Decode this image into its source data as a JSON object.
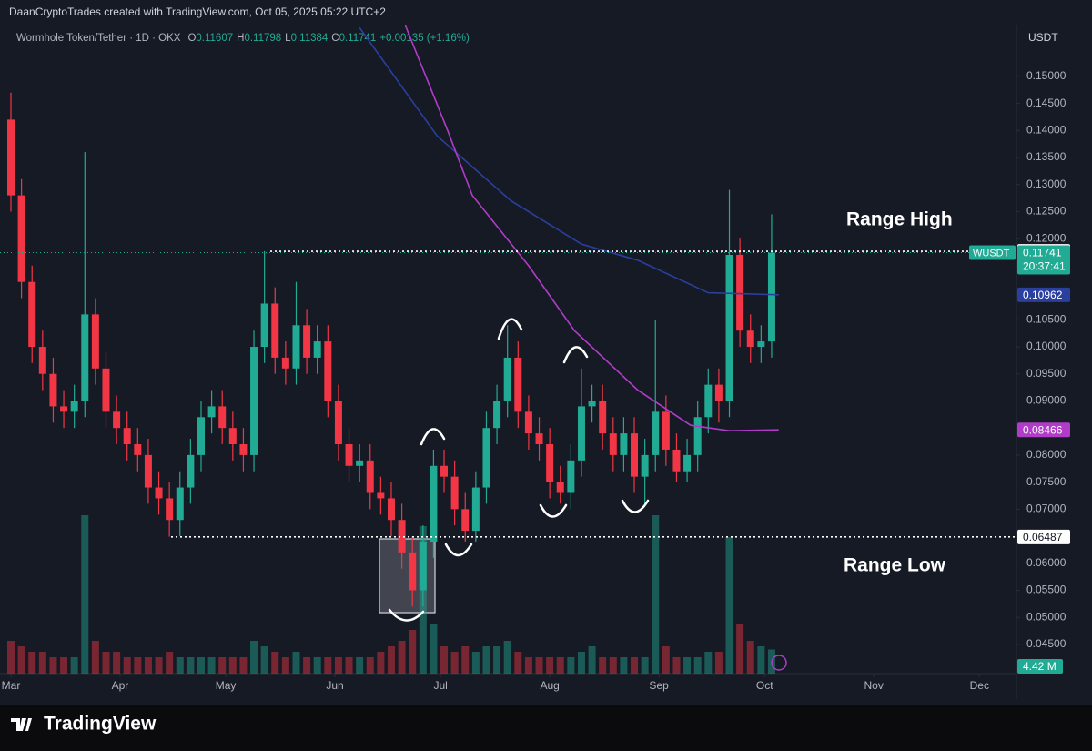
{
  "header": {
    "credit": "DaanCryptoTrades created with TradingView.com, Oct 05, 2025 05:22 UTC+2",
    "logo": "TradingView"
  },
  "chart_data": {
    "type": "candlestick",
    "symbol_line": "Wormhole Token/Tether · 1D · OKX",
    "ohlc": [
      {
        "label": "O",
        "value": 0.11607
      },
      {
        "label": "H",
        "value": 0.11798
      },
      {
        "label": "L",
        "value": 0.11384
      },
      {
        "label": "C",
        "value": 0.11741
      }
    ],
    "change": "+0.00135 (+1.16%)",
    "currency": "USDT",
    "ticker": "WUSDT",
    "countdown": "20:37:41",
    "volume_label": "4.42 M",
    "colors": {
      "up": "#22ab94",
      "down": "#f23645"
    },
    "x": [
      0,
      3,
      6,
      9,
      12,
      15,
      18,
      21,
      24,
      27,
      30,
      33,
      36,
      39,
      42,
      45,
      48,
      51,
      54,
      57,
      60,
      63,
      66,
      69,
      72,
      75,
      78,
      81,
      84,
      87,
      90,
      93,
      96,
      99,
      102,
      105,
      108,
      111,
      114,
      117,
      120,
      123,
      126,
      129,
      132,
      135,
      138,
      141,
      144,
      147,
      150,
      153,
      156,
      159,
      162,
      165,
      168,
      171,
      174,
      177,
      180,
      183,
      186,
      189,
      192,
      195,
      198,
      201,
      204,
      207,
      210,
      213,
      216
    ],
    "open": [
      0.142,
      0.128,
      0.112,
      0.1,
      0.095,
      0.089,
      0.088,
      0.09,
      0.106,
      0.096,
      0.088,
      0.085,
      0.082,
      0.08,
      0.074,
      0.072,
      0.068,
      0.074,
      0.08,
      0.087,
      0.089,
      0.085,
      0.082,
      0.08,
      0.1,
      0.108,
      0.098,
      0.096,
      0.104,
      0.098,
      0.101,
      0.09,
      0.082,
      0.078,
      0.079,
      0.073,
      0.072,
      0.068,
      0.062,
      0.055,
      0.064,
      0.078,
      0.076,
      0.07,
      0.066,
      0.074,
      0.085,
      0.09,
      0.098,
      0.088,
      0.084,
      0.082,
      0.075,
      0.073,
      0.079,
      0.089,
      0.09,
      0.084,
      0.08,
      0.084,
      0.076,
      0.08,
      0.088,
      0.081,
      0.077,
      0.08,
      0.087,
      0.093,
      0.09,
      0.117,
      0.103,
      0.1,
      0.101
    ],
    "high": [
      0.147,
      0.131,
      0.115,
      0.103,
      0.098,
      0.092,
      0.093,
      0.136,
      0.109,
      0.099,
      0.091,
      0.088,
      0.085,
      0.083,
      0.077,
      0.075,
      0.077,
      0.083,
      0.09,
      0.092,
      0.092,
      0.088,
      0.085,
      0.103,
      0.1177,
      0.111,
      0.101,
      0.112,
      0.107,
      0.104,
      0.104,
      0.093,
      0.085,
      0.082,
      0.082,
      0.076,
      0.075,
      0.071,
      0.065,
      0.067,
      0.081,
      0.081,
      0.079,
      0.073,
      0.077,
      0.088,
      0.093,
      0.104,
      0.101,
      0.091,
      0.087,
      0.085,
      0.078,
      0.082,
      0.096,
      0.093,
      0.093,
      0.087,
      0.087,
      0.087,
      0.083,
      0.105,
      0.091,
      0.084,
      0.083,
      0.09,
      0.096,
      0.096,
      0.129,
      0.12,
      0.106,
      0.104,
      0.1245
    ],
    "low": [
      0.125,
      0.109,
      0.097,
      0.092,
      0.086,
      0.085,
      0.085,
      0.087,
      0.093,
      0.085,
      0.082,
      0.079,
      0.077,
      0.071,
      0.069,
      0.0649,
      0.065,
      0.071,
      0.077,
      0.084,
      0.082,
      0.079,
      0.077,
      0.077,
      0.097,
      0.095,
      0.093,
      0.093,
      0.095,
      0.095,
      0.087,
      0.079,
      0.075,
      0.075,
      0.07,
      0.069,
      0.065,
      0.059,
      0.052,
      0.052,
      0.061,
      0.073,
      0.067,
      0.064,
      0.064,
      0.071,
      0.082,
      0.087,
      0.085,
      0.081,
      0.079,
      0.072,
      0.071,
      0.07,
      0.076,
      0.086,
      0.081,
      0.077,
      0.077,
      0.073,
      0.071,
      0.077,
      0.078,
      0.075,
      0.075,
      0.077,
      0.084,
      0.086,
      0.087,
      0.1,
      0.097,
      0.097,
      0.098
    ],
    "close": [
      0.128,
      0.112,
      0.1,
      0.095,
      0.089,
      0.088,
      0.09,
      0.106,
      0.096,
      0.088,
      0.085,
      0.082,
      0.08,
      0.074,
      0.072,
      0.068,
      0.074,
      0.08,
      0.087,
      0.089,
      0.085,
      0.082,
      0.08,
      0.1,
      0.108,
      0.098,
      0.096,
      0.104,
      0.098,
      0.101,
      0.09,
      0.082,
      0.078,
      0.079,
      0.073,
      0.072,
      0.068,
      0.062,
      0.055,
      0.064,
      0.078,
      0.076,
      0.07,
      0.066,
      0.074,
      0.085,
      0.09,
      0.098,
      0.088,
      0.084,
      0.082,
      0.075,
      0.073,
      0.079,
      0.089,
      0.09,
      0.084,
      0.08,
      0.084,
      0.076,
      0.08,
      0.088,
      0.081,
      0.077,
      0.08,
      0.087,
      0.093,
      0.09,
      0.117,
      0.103,
      0.1,
      0.101,
      0.11741
    ],
    "volume": [
      6,
      5,
      4,
      4,
      3,
      3,
      3,
      29,
      6,
      4,
      4,
      3,
      3,
      3,
      3,
      4,
      3,
      3,
      3,
      3,
      3,
      3,
      3,
      6,
      5,
      4,
      3,
      4,
      3,
      3,
      3,
      3,
      3,
      3,
      3,
      4,
      5,
      6,
      8,
      27,
      9,
      5,
      4,
      5,
      4,
      5,
      5,
      6,
      4,
      3,
      3,
      3,
      3,
      3,
      4,
      5,
      3,
      3,
      3,
      3,
      3,
      29,
      5,
      3,
      3,
      3,
      4,
      4,
      25,
      9,
      6,
      5,
      4.42
    ],
    "vlim": [
      0,
      100
    ],
    "series": [
      {
        "color": "#2a3f9e",
        "x": [
          99,
          121,
          142,
          162,
          178,
          198,
          218
        ],
        "values": [
          0.159,
          0.139,
          0.127,
          0.119,
          0.116,
          0.11,
          0.10962
        ]
      },
      {
        "color": "#b03cc8",
        "x": [
          112,
          124,
          131,
          147,
          160,
          178,
          193,
          204,
          218
        ],
        "values": [
          0.1594,
          0.14,
          0.128,
          0.115,
          0.103,
          0.092,
          0.0855,
          0.0845,
          0.08466
        ]
      }
    ],
    "range_high": 0.11766,
    "range_low": 0.06487,
    "annotations": [
      "Range High",
      "Range Low"
    ],
    "xlim": [
      -3.1,
      285
    ],
    "xticks": [
      {
        "value": 0,
        "label": "Mar"
      },
      {
        "value": 31,
        "label": "Apr"
      },
      {
        "value": 61,
        "label": "May"
      },
      {
        "value": 92,
        "label": "Jun"
      },
      {
        "value": 122,
        "label": "Jul"
      },
      {
        "value": 153,
        "label": "Aug"
      },
      {
        "value": 184,
        "label": "Sep"
      },
      {
        "value": 214,
        "label": "Oct"
      },
      {
        "value": 245,
        "label": "Nov"
      },
      {
        "value": 275,
        "label": "Dec"
      }
    ],
    "ylim": [
      0.0396,
      0.1594
    ],
    "yticks": [
      {
        "value": 0.15,
        "label": "0.15000"
      },
      {
        "value": 0.145,
        "label": "0.14500"
      },
      {
        "value": 0.14,
        "label": "0.14000"
      },
      {
        "value": 0.135,
        "label": "0.13500"
      },
      {
        "value": 0.13,
        "label": "0.13000"
      },
      {
        "value": 0.125,
        "label": "0.12500"
      },
      {
        "value": 0.12,
        "label": "0.12000"
      },
      {
        "value": 0.115,
        "label": "0.11500"
      },
      {
        "value": 0.11,
        "label": "0.11000"
      },
      {
        "value": 0.105,
        "label": "0.10500"
      },
      {
        "value": 0.1,
        "label": "0.10000"
      },
      {
        "value": 0.095,
        "label": "0.09500"
      },
      {
        "value": 0.09,
        "label": "0.09000"
      },
      {
        "value": 0.085,
        "label": "0.08500"
      },
      {
        "value": 0.08,
        "label": "0.08000"
      },
      {
        "value": 0.075,
        "label": "0.07500"
      },
      {
        "value": 0.07,
        "label": "0.07000"
      },
      {
        "value": 0.065,
        "label": "0.06500"
      },
      {
        "value": 0.06,
        "label": "0.06000"
      },
      {
        "value": 0.055,
        "label": "0.05500"
      },
      {
        "value": 0.05,
        "label": "0.05000"
      },
      {
        "value": 0.045,
        "label": "0.04500"
      }
    ]
  }
}
